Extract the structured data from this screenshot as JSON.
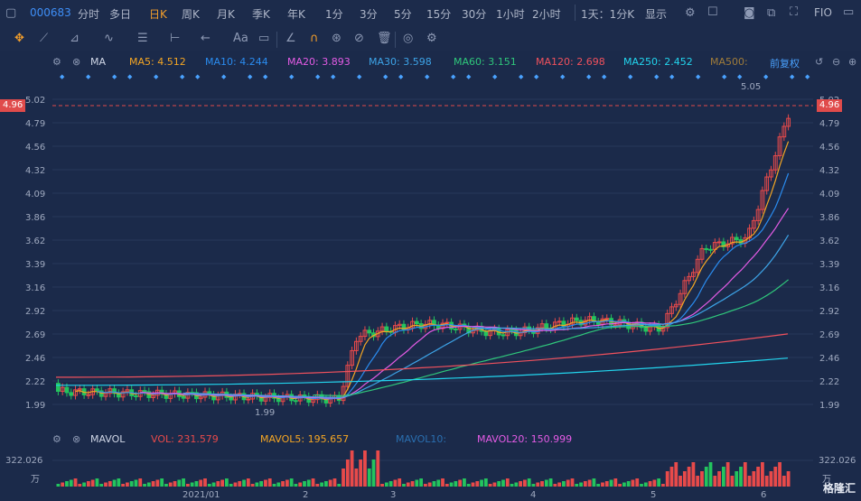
{
  "toolbar": {
    "stock_code": "000683",
    "periods": [
      "分时",
      "多日",
      "日K",
      "周K",
      "月K",
      "季K",
      "年K",
      "1分",
      "3分",
      "5分",
      "15分",
      "30分",
      "1小时",
      "2小时"
    ],
    "active_period": "日K",
    "interval_select": "1天：1分K",
    "display_select": "显示",
    "fio_label": "FIO"
  },
  "indicators": {
    "ma_name": "MA",
    "ma5": "MA5: 4.512",
    "ma10": "MA10: 4.244",
    "ma20": "MA20: 3.893",
    "ma30": "MA30: 3.598",
    "ma60": "MA60: 3.151",
    "ma120": "MA120: 2.698",
    "ma250": "MA250: 2.452",
    "ma500": "MA500:",
    "adjust_label": "前复权",
    "mavol_name": "MAVOL",
    "vol": "VOL: 231.579",
    "mavol5": "MAVOL5: 195.657",
    "mavol10": "MAVOL10:",
    "mavol20": "MAVOL20: 150.999"
  },
  "colors": {
    "ma5": "#f5a623",
    "ma10": "#2a8cf0",
    "ma20": "#e45be5",
    "ma30": "#3da4e8",
    "ma60": "#2fc77b",
    "ma120": "#f0515d",
    "ma250": "#22d5ee",
    "ma500": "#a07c3a",
    "up": "#e84a4a",
    "down": "#23c45e",
    "grid": "#27385a"
  },
  "price_axis": {
    "labels": [
      "5.02",
      "4.79",
      "4.56",
      "4.32",
      "4.09",
      "3.86",
      "3.62",
      "3.39",
      "3.16",
      "2.92",
      "2.69",
      "2.46",
      "2.22",
      "1.99"
    ],
    "current": "4.96",
    "high_note": "5.05",
    "low_note": "1.99"
  },
  "volume_axis": {
    "max": "322.026",
    "unit": "万"
  },
  "x_axis": {
    "labels": [
      "2021/01",
      "2",
      "3",
      "4",
      "5",
      "6"
    ]
  },
  "watermark": "格隆汇"
}
